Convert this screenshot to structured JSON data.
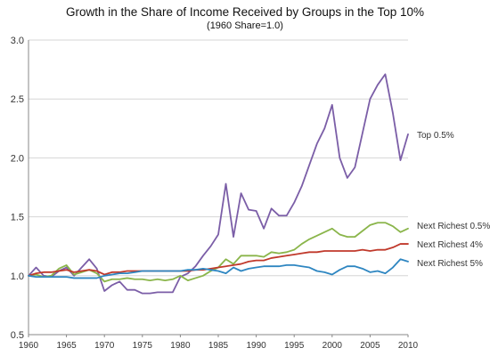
{
  "chart_data": {
    "type": "line",
    "title": "Growth in the Share of Income Received by Groups in the Top 10%",
    "subtitle": "(1960 Share=1.0)",
    "xlabel": "",
    "ylabel": "",
    "xlim": [
      1960,
      2010
    ],
    "ylim": [
      0.5,
      3.0
    ],
    "x_ticks": [
      "1960",
      "1965",
      "1970",
      "1975",
      "1980",
      "1985",
      "1990",
      "1995",
      "2000",
      "2005",
      "2010"
    ],
    "y_ticks": [
      "3.0",
      "2.5",
      "2.0",
      "1.5",
      "1.0",
      "0.5"
    ],
    "grid": "horizontal",
    "x": [
      1960,
      1961,
      1962,
      1963,
      1964,
      1965,
      1966,
      1967,
      1968,
      1969,
      1970,
      1971,
      1972,
      1973,
      1974,
      1975,
      1976,
      1977,
      1978,
      1979,
      1980,
      1981,
      1982,
      1983,
      1984,
      1985,
      1986,
      1987,
      1988,
      1989,
      1990,
      1991,
      1992,
      1993,
      1994,
      1995,
      1996,
      1997,
      1998,
      1999,
      2000,
      2001,
      2002,
      2003,
      2004,
      2005,
      2006,
      2007,
      2008,
      2009,
      2010
    ],
    "series": [
      {
        "name": "Top 0.5%",
        "color": "#7b5ea7",
        "values": [
          1.0,
          1.07,
          1.0,
          0.99,
          1.04,
          1.07,
          1.0,
          1.07,
          1.14,
          1.06,
          0.87,
          0.92,
          0.95,
          0.88,
          0.88,
          0.85,
          0.85,
          0.86,
          0.86,
          0.86,
          0.99,
          1.02,
          1.08,
          1.17,
          1.25,
          1.35,
          1.78,
          1.33,
          1.7,
          1.56,
          1.55,
          1.4,
          1.57,
          1.51,
          1.51,
          1.62,
          1.76,
          1.94,
          2.12,
          2.25,
          2.45,
          2.0,
          1.83,
          1.92,
          2.21,
          2.5,
          2.62,
          2.71,
          2.38,
          1.98,
          2.2
        ]
      },
      {
        "name": "Next Richest 0.5%",
        "color": "#8ab54a",
        "values": [
          1.0,
          1.01,
          0.99,
          1.0,
          1.06,
          1.09,
          1.01,
          1.03,
          1.05,
          1.02,
          0.95,
          0.97,
          0.97,
          0.98,
          0.97,
          0.97,
          0.96,
          0.97,
          0.96,
          0.97,
          1.0,
          0.96,
          0.98,
          1.0,
          1.04,
          1.07,
          1.14,
          1.1,
          1.17,
          1.17,
          1.17,
          1.16,
          1.2,
          1.19,
          1.2,
          1.22,
          1.27,
          1.31,
          1.34,
          1.37,
          1.4,
          1.35,
          1.33,
          1.33,
          1.38,
          1.43,
          1.45,
          1.45,
          1.42,
          1.37,
          1.4
        ]
      },
      {
        "name": "Next Richest 4%",
        "color": "#c0392b",
        "values": [
          1.0,
          1.02,
          1.03,
          1.03,
          1.04,
          1.05,
          1.03,
          1.04,
          1.05,
          1.04,
          1.01,
          1.03,
          1.03,
          1.04,
          1.04,
          1.04,
          1.04,
          1.04,
          1.04,
          1.04,
          1.04,
          1.04,
          1.05,
          1.05,
          1.06,
          1.07,
          1.08,
          1.09,
          1.1,
          1.12,
          1.13,
          1.13,
          1.15,
          1.16,
          1.17,
          1.18,
          1.19,
          1.2,
          1.2,
          1.21,
          1.21,
          1.21,
          1.21,
          1.21,
          1.22,
          1.21,
          1.22,
          1.22,
          1.24,
          1.27,
          1.27
        ]
      },
      {
        "name": "Next Richest 5%",
        "color": "#2e86c1",
        "values": [
          1.0,
          0.99,
          0.99,
          0.99,
          0.99,
          0.99,
          0.98,
          0.98,
          0.98,
          0.98,
          1.0,
          1.01,
          1.02,
          1.02,
          1.03,
          1.04,
          1.04,
          1.04,
          1.04,
          1.04,
          1.04,
          1.05,
          1.05,
          1.06,
          1.05,
          1.04,
          1.02,
          1.07,
          1.04,
          1.06,
          1.07,
          1.08,
          1.08,
          1.08,
          1.09,
          1.09,
          1.08,
          1.07,
          1.04,
          1.03,
          1.01,
          1.05,
          1.08,
          1.08,
          1.06,
          1.03,
          1.04,
          1.02,
          1.07,
          1.14,
          1.12
        ]
      }
    ]
  }
}
